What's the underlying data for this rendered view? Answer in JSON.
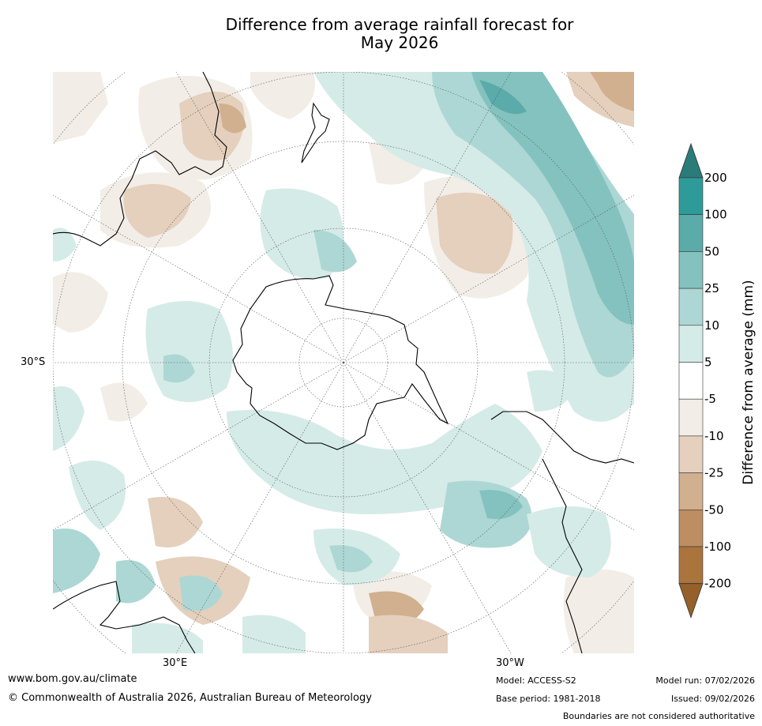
{
  "title_line1": "Difference from average rainfall forecast for",
  "title_line2": "May 2026",
  "map": {
    "projection": "south-polar-stereographic",
    "graticule_labels": {
      "lat_left": "30°S",
      "lon_bottom_left": "30°E",
      "lon_bottom_right": "30°W"
    }
  },
  "colorbar": {
    "title": "Difference from average (mm)",
    "tick_labels": [
      "200",
      "100",
      "50",
      "25",
      "10",
      "5",
      "-5",
      "-10",
      "-25",
      "-50",
      "-100",
      "-200"
    ],
    "colors": [
      "#2a7c7a",
      "#2f9b99",
      "#5aabaa",
      "#84c2bf",
      "#add7d4",
      "#d5ebe8",
      "#ffffff",
      "#f3ede7",
      "#e4d0bd",
      "#d1b08f",
      "#bd8e61",
      "#aa743d",
      "#95602a"
    ]
  },
  "footer": {
    "url": "www.bom.gov.au/climate",
    "copyright": "© Commonwealth of Australia 2026, Australian Bureau of Meteorology",
    "model": "Model: ACCESS-S2",
    "base_period": "Base period: 1981-2018",
    "model_run": "Model run: 07/02/2026",
    "issued": "Issued: 09/02/2026",
    "disclaimer": "Boundaries are not considered authoritative"
  }
}
